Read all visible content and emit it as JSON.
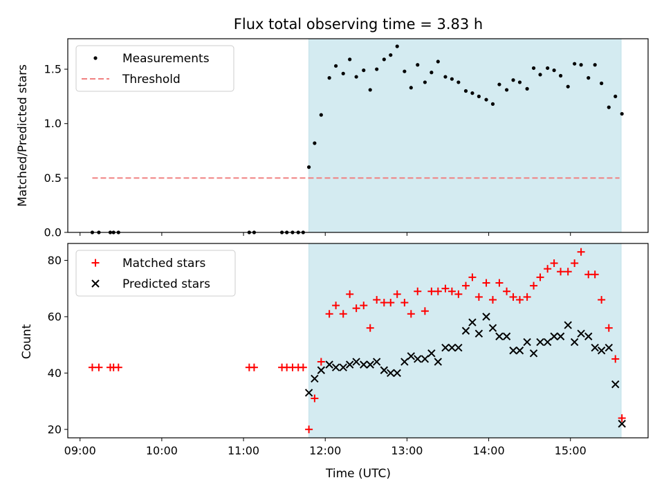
{
  "chart_data": [
    {
      "type": "scatter",
      "title": "Flux total observing time = 3.83 h",
      "xlabel": "",
      "ylabel": "Matched/Predicted stars",
      "xlim": [
        8.85,
        15.95
      ],
      "ylim": [
        0.0,
        1.78
      ],
      "yticks": [
        0.0,
        0.5,
        1.0,
        1.5
      ],
      "ytick_labels": [
        "0.0",
        "0.5",
        "1.0",
        "1.5"
      ],
      "shaded_x_range": [
        11.8,
        15.62
      ],
      "shade_color": "#d4ebf1",
      "legend": {
        "placement": "top-left",
        "entries": [
          "Measurements",
          "Threshold"
        ]
      },
      "threshold": {
        "name": "Threshold",
        "value": 0.5,
        "x_range": [
          9.15,
          15.6
        ],
        "color": "#f08080"
      },
      "series": [
        {
          "name": "Measurements",
          "marker": "dot",
          "color": "#000000",
          "x": [
            9.15,
            9.23,
            9.37,
            9.41,
            9.47,
            11.07,
            11.13,
            11.47,
            11.53,
            11.6,
            11.67,
            11.73,
            11.8,
            11.87,
            11.95,
            12.05,
            12.13,
            12.22,
            12.3,
            12.38,
            12.47,
            12.55,
            12.63,
            12.72,
            12.8,
            12.88,
            12.97,
            13.05,
            13.13,
            13.22,
            13.3,
            13.38,
            13.47,
            13.55,
            13.63,
            13.72,
            13.8,
            13.88,
            13.97,
            14.05,
            14.13,
            14.22,
            14.3,
            14.38,
            14.47,
            14.55,
            14.63,
            14.72,
            14.8,
            14.88,
            14.97,
            15.05,
            15.13,
            15.22,
            15.3,
            15.38,
            15.47,
            15.55,
            15.63
          ],
          "y": [
            0.0,
            0.0,
            0.0,
            0.0,
            0.0,
            0.0,
            0.0,
            0.0,
            0.0,
            0.0,
            0.0,
            0.0,
            0.6,
            0.82,
            1.08,
            1.42,
            1.53,
            1.46,
            1.59,
            1.43,
            1.49,
            1.31,
            1.5,
            1.59,
            1.63,
            1.71,
            1.48,
            1.33,
            1.54,
            1.38,
            1.47,
            1.57,
            1.43,
            1.41,
            1.38,
            1.3,
            1.28,
            1.25,
            1.22,
            1.18,
            1.36,
            1.31,
            1.4,
            1.38,
            1.32,
            1.51,
            1.45,
            1.51,
            1.49,
            1.44,
            1.34,
            1.55,
            1.54,
            1.42,
            1.54,
            1.37,
            1.15,
            1.25,
            1.09
          ]
        }
      ]
    },
    {
      "type": "scatter",
      "title": "",
      "xlabel": "Time (UTC)",
      "ylabel": "Count",
      "xlim": [
        8.85,
        15.95
      ],
      "ylim": [
        17,
        86
      ],
      "yticks": [
        20,
        40,
        60,
        80
      ],
      "ytick_labels": [
        "20",
        "40",
        "60",
        "80"
      ],
      "xticks": [
        9,
        10,
        11,
        12,
        13,
        14,
        15
      ],
      "xtick_labels": [
        "09:00",
        "10:00",
        "11:00",
        "12:00",
        "13:00",
        "14:00",
        "15:00"
      ],
      "shaded_x_range": [
        11.8,
        15.62
      ],
      "shade_color": "#d4ebf1",
      "legend": {
        "placement": "top-left",
        "entries": [
          "Matched stars",
          "Predicted stars"
        ]
      },
      "series": [
        {
          "name": "Matched stars",
          "marker": "plus",
          "color": "#ff0000",
          "x": [
            9.15,
            9.23,
            9.37,
            9.41,
            9.47,
            11.07,
            11.13,
            11.47,
            11.53,
            11.6,
            11.67,
            11.73,
            11.8,
            11.87,
            11.95,
            12.05,
            12.13,
            12.22,
            12.3,
            12.38,
            12.47,
            12.55,
            12.63,
            12.72,
            12.8,
            12.88,
            12.97,
            13.05,
            13.13,
            13.22,
            13.3,
            13.38,
            13.47,
            13.55,
            13.63,
            13.72,
            13.8,
            13.88,
            13.97,
            14.05,
            14.13,
            14.22,
            14.3,
            14.38,
            14.47,
            14.55,
            14.63,
            14.72,
            14.8,
            14.88,
            14.97,
            15.05,
            15.13,
            15.22,
            15.3,
            15.38,
            15.47,
            15.55,
            15.63
          ],
          "y": [
            42,
            42,
            42,
            42,
            42,
            42,
            42,
            42,
            42,
            42,
            42,
            42,
            20,
            31,
            44,
            61,
            64,
            61,
            68,
            63,
            64,
            56,
            66,
            65,
            65,
            68,
            65,
            61,
            69,
            62,
            69,
            69,
            70,
            69,
            68,
            71,
            74,
            67,
            72,
            66,
            72,
            69,
            67,
            66,
            67,
            71,
            74,
            77,
            79,
            76,
            76,
            79,
            83,
            75,
            75,
            66,
            56,
            45,
            24
          ]
        },
        {
          "name": "Predicted stars",
          "marker": "x",
          "color": "#000000",
          "x": [
            11.8,
            11.87,
            11.95,
            12.05,
            12.13,
            12.22,
            12.3,
            12.38,
            12.47,
            12.55,
            12.63,
            12.72,
            12.8,
            12.88,
            12.97,
            13.05,
            13.13,
            13.22,
            13.3,
            13.38,
            13.47,
            13.55,
            13.63,
            13.72,
            13.8,
            13.88,
            13.97,
            14.05,
            14.13,
            14.22,
            14.3,
            14.38,
            14.47,
            14.55,
            14.63,
            14.72,
            14.8,
            14.88,
            14.97,
            15.05,
            15.13,
            15.22,
            15.3,
            15.38,
            15.47,
            15.55,
            15.63
          ],
          "y": [
            33,
            38,
            41,
            43,
            42,
            42,
            43,
            44,
            43,
            43,
            44,
            41,
            40,
            40,
            44,
            46,
            45,
            45,
            47,
            44,
            49,
            49,
            49,
            55,
            58,
            54,
            60,
            56,
            53,
            53,
            48,
            48,
            51,
            47,
            51,
            51,
            53,
            53,
            57,
            51,
            54,
            53,
            49,
            48,
            49,
            36,
            22
          ]
        }
      ]
    }
  ]
}
